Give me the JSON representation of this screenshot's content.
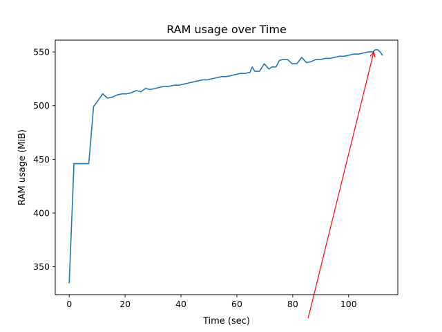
{
  "chart_data": {
    "type": "line",
    "title": "RAM usage over Time",
    "xlabel": "Time (sec)",
    "ylabel": "RAM usage (MiB)",
    "xlim": [
      -5,
      117.6
    ],
    "ylim": [
      324,
      561
    ],
    "xticks": [
      0,
      20,
      40,
      60,
      80,
      100
    ],
    "yticks": [
      350,
      400,
      450,
      500,
      550
    ],
    "grid": false,
    "colors": {
      "line": "#1f77b4",
      "annotation": "#ff0000",
      "axes": "#000000"
    },
    "series": [
      {
        "x": [
          0,
          1.7,
          3.5,
          5.3,
          7,
          8.7,
          10.4,
          12,
          13.7,
          15.5,
          17.2,
          19,
          20.6,
          22.3,
          24,
          25.7,
          27.3,
          29,
          30.7,
          32.4,
          34.1,
          35.8,
          37.5,
          39.2,
          40.9,
          42.6,
          44.3,
          46,
          47.7,
          49.4,
          51.1,
          52.8,
          54.5,
          56.2,
          57.9,
          59.6,
          61.3,
          63,
          64.7,
          65.5,
          66.4,
          68.1,
          69.8,
          71.5,
          72.5,
          74,
          75.2,
          76.4,
          78.1,
          79.8,
          81.5,
          83.2,
          84.9,
          86.6,
          88.3,
          90,
          91.7,
          93.4,
          95.1,
          96.8,
          98.5,
          100.2,
          101.9,
          103.6,
          105.3,
          107,
          108.7,
          109.5,
          110.4,
          111.3,
          112.1
        ],
        "values": [
          335,
          446,
          446,
          446,
          446,
          499,
          505,
          511,
          507,
          508,
          510,
          511,
          511,
          512,
          514,
          513,
          516,
          515,
          516,
          517,
          518,
          518,
          519,
          519,
          520,
          521,
          522,
          523,
          524,
          524,
          525,
          526,
          527,
          527,
          528,
          529,
          530,
          530,
          531,
          536,
          532,
          532,
          539,
          534,
          536,
          536,
          542,
          543,
          543,
          539,
          539,
          545,
          540,
          541,
          543,
          543,
          544,
          544,
          545,
          546,
          546,
          547,
          548,
          548,
          549,
          550,
          550,
          552,
          552,
          550,
          547
        ]
      }
    ],
    "annotation": {
      "from": [
        85.5,
        302
      ],
      "to": [
        109,
        550
      ]
    }
  }
}
